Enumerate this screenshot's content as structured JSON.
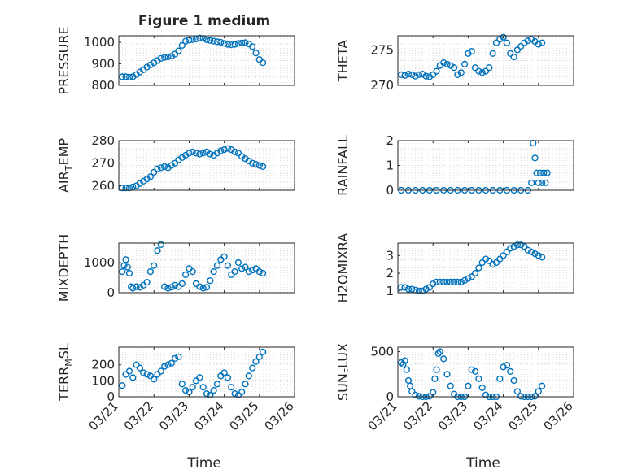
{
  "title": "Figure 1 medium",
  "x_tick_labels": [
    "03/21",
    "03/22",
    "03/23",
    "03/24",
    "03/25",
    "03/26"
  ],
  "x_axis_label": "Time",
  "colors": {
    "marker": "#0072BD",
    "grid": "#d4d4d4",
    "axis": "#262626"
  },
  "chart_data": [
    {
      "type": "scatter",
      "ylabel": "PRESSURE",
      "yticks": [
        800,
        900,
        1000
      ],
      "ylim": [
        800,
        1030
      ],
      "xlim": [
        0,
        5
      ],
      "x": [
        0.1,
        0.2,
        0.3,
        0.4,
        0.5,
        0.6,
        0.7,
        0.8,
        0.9,
        1.0,
        1.1,
        1.2,
        1.3,
        1.4,
        1.5,
        1.6,
        1.7,
        1.8,
        1.9,
        2.0,
        2.1,
        2.2,
        2.3,
        2.4,
        2.5,
        2.6,
        2.7,
        2.8,
        2.9,
        3.0,
        3.1,
        3.2,
        3.3,
        3.4,
        3.5,
        3.6,
        3.7,
        3.8,
        3.9,
        4.0,
        4.1
      ],
      "values": [
        840,
        840,
        838,
        840,
        850,
        862,
        872,
        885,
        895,
        905,
        915,
        925,
        930,
        932,
        935,
        945,
        960,
        985,
        1005,
        1010,
        1012,
        1015,
        1020,
        1018,
        1012,
        1008,
        1005,
        1002,
        1000,
        995,
        990,
        988,
        990,
        995,
        997,
        998,
        992,
        980,
        950,
        920,
        905
      ]
    },
    {
      "type": "scatter",
      "ylabel": "THETA",
      "yticks": [
        270,
        275
      ],
      "ylim": [
        270,
        277
      ],
      "xlim": [
        0,
        5
      ],
      "x": [
        0.1,
        0.2,
        0.3,
        0.4,
        0.5,
        0.6,
        0.7,
        0.8,
        0.9,
        1.0,
        1.1,
        1.2,
        1.3,
        1.4,
        1.5,
        1.6,
        1.7,
        1.8,
        1.9,
        2.0,
        2.1,
        2.2,
        2.3,
        2.4,
        2.5,
        2.6,
        2.7,
        2.8,
        2.9,
        3.0,
        3.1,
        3.2,
        3.3,
        3.4,
        3.5,
        3.6,
        3.7,
        3.8,
        3.9,
        4.0,
        4.1
      ],
      "values": [
        271.5,
        271.4,
        271.6,
        271.5,
        271.3,
        271.5,
        271.6,
        271.3,
        271.2,
        271.5,
        272.0,
        272.8,
        273.2,
        273.0,
        272.8,
        272.5,
        271.5,
        271.8,
        273.0,
        274.5,
        274.8,
        272.5,
        272.0,
        271.8,
        272.0,
        272.5,
        274.5,
        276.0,
        276.5,
        276.8,
        276.0,
        274.5,
        274.0,
        275.0,
        275.5,
        276.0,
        276.3,
        276.5,
        276.2,
        275.8,
        276.0
      ]
    },
    {
      "type": "scatter",
      "ylabel": "AIR_TEMP",
      "yticks": [
        260,
        270,
        280
      ],
      "ylim": [
        258,
        280
      ],
      "xlim": [
        0,
        5
      ],
      "x": [
        0.1,
        0.2,
        0.3,
        0.4,
        0.5,
        0.6,
        0.7,
        0.8,
        0.9,
        1.0,
        1.1,
        1.2,
        1.3,
        1.4,
        1.5,
        1.6,
        1.7,
        1.8,
        1.9,
        2.0,
        2.1,
        2.2,
        2.3,
        2.4,
        2.5,
        2.6,
        2.7,
        2.8,
        2.9,
        3.0,
        3.1,
        3.2,
        3.3,
        3.4,
        3.5,
        3.6,
        3.7,
        3.8,
        3.9,
        4.0,
        4.1
      ],
      "values": [
        259,
        259,
        259,
        259.5,
        260,
        261,
        262,
        263,
        264,
        266,
        267.5,
        268,
        268.5,
        268,
        269,
        270,
        271.5,
        272.5,
        273.5,
        274.5,
        275,
        274.5,
        274,
        274.5,
        275,
        274,
        273.5,
        274.5,
        275.5,
        276,
        276.5,
        276,
        275,
        274.5,
        273,
        272,
        271,
        270,
        269.5,
        269,
        268.5
      ]
    },
    {
      "type": "scatter",
      "ylabel": "RAINFALL",
      "yticks": [
        0,
        1,
        2
      ],
      "ylim": [
        0,
        2
      ],
      "xlim": [
        0,
        5
      ],
      "x": [
        0.1,
        0.3,
        0.5,
        0.7,
        0.9,
        1.1,
        1.3,
        1.5,
        1.7,
        1.9,
        2.1,
        2.3,
        2.5,
        2.7,
        2.9,
        3.1,
        3.3,
        3.5,
        3.7,
        3.8,
        3.85,
        3.9,
        3.95,
        4.0,
        4.05,
        4.1,
        4.15,
        4.2,
        4.25
      ],
      "values": [
        0,
        0,
        0,
        0,
        0,
        0,
        0,
        0,
        0,
        0,
        0,
        0,
        0,
        0,
        0,
        0,
        0,
        0,
        0,
        0.3,
        1.9,
        1.3,
        0.7,
        0.3,
        0.7,
        0.3,
        0.7,
        0.3,
        0.7
      ]
    },
    {
      "type": "scatter",
      "ylabel": "MIXDEPTH",
      "yticks": [
        0,
        1000
      ],
      "ylim": [
        0,
        1650
      ],
      "xlim": [
        0,
        5
      ],
      "x": [
        0.1,
        0.15,
        0.2,
        0.25,
        0.3,
        0.35,
        0.4,
        0.5,
        0.6,
        0.7,
        0.8,
        0.9,
        1.0,
        1.1,
        1.2,
        1.3,
        1.4,
        1.5,
        1.6,
        1.7,
        1.8,
        1.9,
        2.0,
        2.1,
        2.2,
        2.3,
        2.4,
        2.5,
        2.6,
        2.7,
        2.8,
        2.9,
        3.0,
        3.1,
        3.2,
        3.3,
        3.4,
        3.5,
        3.6,
        3.7,
        3.8,
        3.9,
        4.0,
        4.1
      ],
      "values": [
        700,
        900,
        1100,
        850,
        650,
        200,
        150,
        200,
        180,
        250,
        350,
        700,
        900,
        1400,
        1600,
        200,
        150,
        180,
        250,
        200,
        300,
        600,
        800,
        700,
        300,
        200,
        150,
        180,
        400,
        700,
        900,
        1100,
        1200,
        900,
        600,
        700,
        1000,
        800,
        850,
        700,
        750,
        800,
        700,
        650
      ]
    },
    {
      "type": "scatter",
      "ylabel": "H2OMIXRA",
      "yticks": [
        1,
        2,
        3
      ],
      "ylim": [
        0.9,
        3.7
      ],
      "xlim": [
        0,
        5
      ],
      "x": [
        0.1,
        0.2,
        0.3,
        0.4,
        0.5,
        0.6,
        0.7,
        0.8,
        0.9,
        1.0,
        1.1,
        1.2,
        1.3,
        1.4,
        1.5,
        1.6,
        1.7,
        1.8,
        1.9,
        2.0,
        2.1,
        2.2,
        2.3,
        2.4,
        2.5,
        2.6,
        2.7,
        2.8,
        2.9,
        3.0,
        3.1,
        3.2,
        3.3,
        3.4,
        3.5,
        3.6,
        3.7,
        3.8,
        3.9,
        4.0,
        4.1
      ],
      "values": [
        1.2,
        1.2,
        1.1,
        1.1,
        1.05,
        1.0,
        1.0,
        1.1,
        1.2,
        1.4,
        1.5,
        1.5,
        1.5,
        1.5,
        1.5,
        1.5,
        1.5,
        1.5,
        1.6,
        1.7,
        1.8,
        2.0,
        2.3,
        2.6,
        2.8,
        2.7,
        2.5,
        2.6,
        2.8,
        3.0,
        3.2,
        3.4,
        3.5,
        3.6,
        3.6,
        3.5,
        3.3,
        3.2,
        3.1,
        3.0,
        2.9
      ]
    },
    {
      "type": "scatter",
      "ylabel": "TERR_MSL",
      "yticks": [
        0,
        100,
        200
      ],
      "ylim": [
        0,
        310
      ],
      "xlim": [
        0,
        5
      ],
      "x": [
        0.1,
        0.2,
        0.3,
        0.4,
        0.5,
        0.6,
        0.7,
        0.8,
        0.9,
        1.0,
        1.1,
        1.2,
        1.3,
        1.4,
        1.5,
        1.6,
        1.7,
        1.8,
        1.9,
        2.0,
        2.1,
        2.2,
        2.3,
        2.4,
        2.5,
        2.6,
        2.7,
        2.8,
        2.9,
        3.0,
        3.1,
        3.2,
        3.3,
        3.4,
        3.5,
        3.6,
        3.7,
        3.8,
        3.9,
        4.0,
        4.1
      ],
      "values": [
        70,
        140,
        160,
        120,
        200,
        180,
        150,
        140,
        130,
        110,
        140,
        160,
        190,
        200,
        210,
        240,
        250,
        80,
        40,
        30,
        60,
        100,
        120,
        60,
        20,
        10,
        40,
        80,
        130,
        150,
        120,
        60,
        20,
        10,
        30,
        80,
        130,
        180,
        220,
        250,
        280
      ]
    },
    {
      "type": "scatter",
      "ylabel": "SUN_FLUX",
      "yticks": [
        0,
        500
      ],
      "ylim": [
        0,
        550
      ],
      "xlim": [
        0,
        5
      ],
      "x": [
        0.1,
        0.15,
        0.2,
        0.25,
        0.3,
        0.35,
        0.4,
        0.5,
        0.6,
        0.7,
        0.8,
        0.9,
        1.0,
        1.05,
        1.1,
        1.15,
        1.2,
        1.3,
        1.4,
        1.5,
        1.6,
        1.7,
        1.8,
        1.9,
        2.0,
        2.1,
        2.2,
        2.3,
        2.4,
        2.5,
        2.6,
        2.7,
        2.8,
        2.9,
        3.0,
        3.1,
        3.2,
        3.3,
        3.4,
        3.5,
        3.6,
        3.7,
        3.8,
        3.9,
        4.0,
        4.1
      ],
      "values": [
        380,
        360,
        400,
        300,
        180,
        120,
        60,
        20,
        5,
        0,
        0,
        5,
        50,
        200,
        300,
        480,
        500,
        420,
        250,
        120,
        30,
        0,
        0,
        0,
        120,
        300,
        280,
        200,
        100,
        20,
        0,
        0,
        0,
        200,
        330,
        350,
        280,
        180,
        60,
        5,
        0,
        0,
        0,
        5,
        60,
        120
      ]
    }
  ]
}
